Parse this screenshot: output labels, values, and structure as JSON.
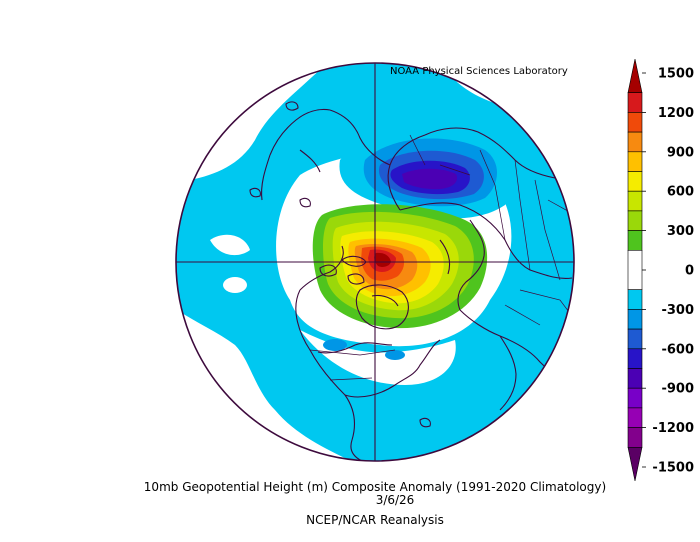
{
  "credit": "NOAA Physical Sciences Laboratory",
  "caption": {
    "line1": "10mb Geopotential Height (m) Composite Anomaly (1991-2020 Climatology)",
    "line2": "3/6/26",
    "line3": "NCEP/NCAR Reanalysis"
  },
  "colorbar": {
    "unit": "m",
    "range": [
      -1500,
      1500
    ],
    "levels": [
      {
        "from": 1350,
        "to": 1500,
        "color": "#a50000"
      },
      {
        "from": 1200,
        "to": 1350,
        "color": "#d7191c"
      },
      {
        "from": 1050,
        "to": 1200,
        "color": "#f04a0a"
      },
      {
        "from": 900,
        "to": 1050,
        "color": "#f78a10"
      },
      {
        "from": 750,
        "to": 900,
        "color": "#ffc000"
      },
      {
        "from": 600,
        "to": 750,
        "color": "#f5ec00"
      },
      {
        "from": 450,
        "to": 600,
        "color": "#c8e600"
      },
      {
        "from": 300,
        "to": 450,
        "color": "#9ad80a"
      },
      {
        "from": 150,
        "to": 300,
        "color": "#4fc41e"
      },
      {
        "from": -150,
        "to": 150,
        "color": "#ffffff"
      },
      {
        "from": -300,
        "to": -150,
        "color": "#00c8f0"
      },
      {
        "from": -450,
        "to": -300,
        "color": "#0096e6"
      },
      {
        "from": -600,
        "to": -450,
        "color": "#1e5ad2"
      },
      {
        "from": -750,
        "to": -600,
        "color": "#2814c8"
      },
      {
        "from": -900,
        "to": -750,
        "color": "#4b00b4"
      },
      {
        "from": -1050,
        "to": -900,
        "color": "#7800c8"
      },
      {
        "from": -1200,
        "to": -1050,
        "color": "#9600b4"
      },
      {
        "from": -1350,
        "to": -1200,
        "color": "#82008c"
      },
      {
        "from": -1500,
        "to": -1350,
        "color": "#5a0064"
      }
    ],
    "ticks": [
      "1500",
      "1200",
      "900",
      "600",
      "300",
      "0",
      "-300",
      "-600",
      "-900",
      "-1200",
      "-1500"
    ],
    "tick_values": [
      1500,
      1200,
      900,
      600,
      300,
      0,
      -300,
      -600,
      -900,
      -1200,
      -1500
    ]
  },
  "map": {
    "projection": "north polar stereographic",
    "ocean_color": "#ffffff",
    "outline_color": "#3d0a3d",
    "positive_anomaly_center": "Arctic / Greenland-Baffin region, peak above 1350 m",
    "negative_anomaly_center": "North-central Eurasia / Kara Sea, minimum near -750 m"
  }
}
